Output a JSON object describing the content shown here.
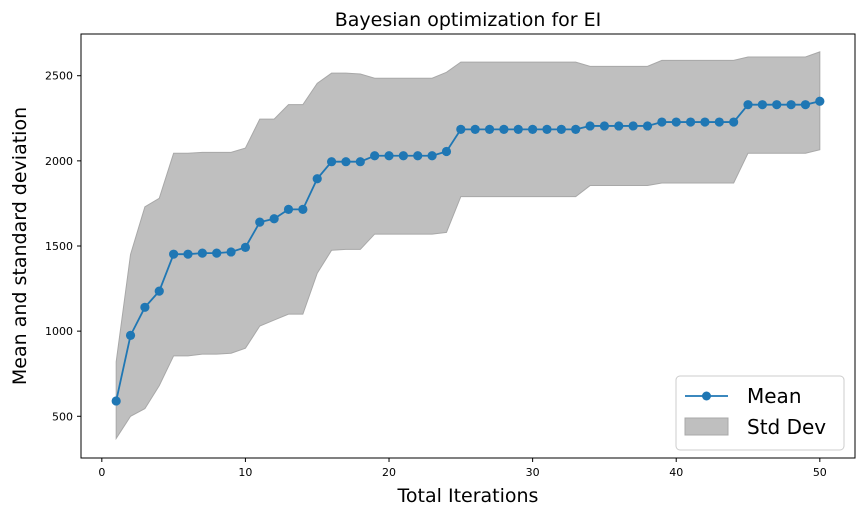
{
  "chart_data": {
    "type": "line",
    "title": "Bayesian optimization for EI",
    "xlabel": "Total Iterations",
    "ylabel": "Mean and standard deviation",
    "xlim": [
      -1.45,
      52.45
    ],
    "ylim": [
      255,
      2745
    ],
    "xticks": [
      0,
      10,
      20,
      30,
      40,
      50
    ],
    "yticks": [
      500,
      1000,
      1500,
      2000,
      2500
    ],
    "grid": false,
    "legend_position": "lower-right",
    "x": [
      1,
      2,
      3,
      4,
      5,
      6,
      7,
      8,
      9,
      10,
      11,
      12,
      13,
      14,
      15,
      16,
      17,
      18,
      19,
      20,
      21,
      22,
      23,
      24,
      25,
      26,
      27,
      28,
      29,
      30,
      31,
      32,
      33,
      34,
      35,
      36,
      37,
      38,
      39,
      40,
      41,
      42,
      43,
      44,
      45,
      46,
      47,
      48,
      49,
      50
    ],
    "series": [
      {
        "name": "Mean",
        "color": "#1f77b4",
        "marker": "circle",
        "values": [
          590,
          975,
          1140,
          1235,
          1452,
          1452,
          1458,
          1458,
          1465,
          1492,
          1640,
          1660,
          1715,
          1715,
          1895,
          1995,
          1995,
          1995,
          2030,
          2030,
          2030,
          2030,
          2030,
          2055,
          2185,
          2185,
          2185,
          2185,
          2185,
          2185,
          2185,
          2185,
          2185,
          2205,
          2205,
          2205,
          2205,
          2205,
          2228,
          2228,
          2228,
          2228,
          2228,
          2228,
          2330,
          2330,
          2330,
          2330,
          2330,
          2350
        ]
      }
    ],
    "band": {
      "name": "Std Dev",
      "color": "#bfbfbf",
      "edge_color": "#a8a8a8",
      "upper": [
        820,
        1450,
        1730,
        1780,
        2045,
        2045,
        2050,
        2050,
        2050,
        2075,
        2245,
        2245,
        2330,
        2330,
        2455,
        2515,
        2515,
        2510,
        2485,
        2485,
        2485,
        2485,
        2485,
        2520,
        2580,
        2580,
        2580,
        2580,
        2580,
        2580,
        2580,
        2580,
        2580,
        2555,
        2555,
        2555,
        2555,
        2555,
        2590,
        2590,
        2590,
        2590,
        2590,
        2590,
        2610,
        2610,
        2610,
        2610,
        2610,
        2640
      ],
      "lower": [
        370,
        500,
        545,
        680,
        855,
        855,
        865,
        865,
        870,
        900,
        1030,
        1065,
        1100,
        1100,
        1340,
        1475,
        1480,
        1480,
        1570,
        1570,
        1570,
        1570,
        1570,
        1580,
        1790,
        1790,
        1790,
        1790,
        1790,
        1790,
        1790,
        1790,
        1790,
        1855,
        1855,
        1855,
        1855,
        1855,
        1870,
        1870,
        1870,
        1870,
        1870,
        1870,
        2045,
        2045,
        2045,
        2045,
        2045,
        2065
      ]
    }
  }
}
